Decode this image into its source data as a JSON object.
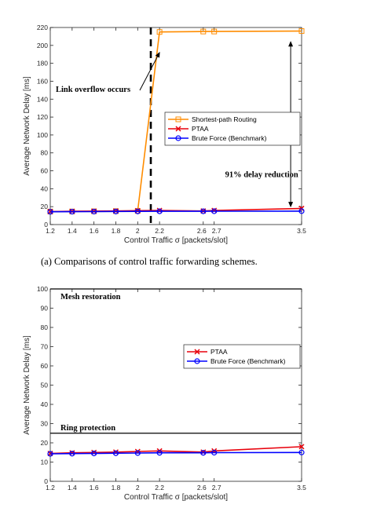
{
  "chart_data": [
    {
      "type": "line",
      "xlabel": "Control Traffic σ [packets/slot]",
      "ylabel": "Average Network Delay [ms]",
      "xlim": [
        1.2,
        3.5
      ],
      "ylim": [
        0,
        220
      ],
      "xticks": [
        1.2,
        1.4,
        1.6,
        1.8,
        2,
        2.2,
        2.6,
        2.7,
        3.5
      ],
      "xtick_labels": [
        "1.2",
        "1.4",
        "1.6",
        "1.8",
        "2",
        "2.2",
        "2.6",
        "2.7",
        "3.5"
      ],
      "yticks": [
        0,
        20,
        40,
        60,
        80,
        100,
        120,
        140,
        160,
        180,
        200,
        220
      ],
      "ytick_labels": [
        "0",
        "20",
        "40",
        "60",
        "80",
        "100",
        "120",
        "140",
        "160",
        "180",
        "200",
        "220"
      ],
      "grid": false,
      "legend_position": "middle-right",
      "series": [
        {
          "name": "Shortest-path Routing",
          "color": "#ff8c00",
          "marker": "square",
          "x": [
            1.2,
            1.4,
            1.6,
            1.8,
            2.0,
            2.2,
            2.6,
            2.7,
            3.5
          ],
          "values": [
            14.5,
            14.6,
            14.8,
            15.0,
            15.2,
            215,
            215.5,
            215.5,
            216
          ]
        },
        {
          "name": "PTAA",
          "color": "#e8000b",
          "marker": "x",
          "x": [
            1.2,
            1.4,
            1.6,
            1.8,
            2.0,
            2.2,
            2.6,
            2.7,
            3.5
          ],
          "values": [
            14.5,
            14.8,
            15.0,
            15.2,
            15.5,
            15.8,
            15.2,
            15.8,
            18.0
          ]
        },
        {
          "name": "Brute Force (Benchmark)",
          "color": "#0000ff",
          "marker": "circle",
          "x": [
            1.2,
            1.4,
            1.6,
            1.8,
            2.0,
            2.2,
            2.6,
            2.7,
            3.5
          ],
          "values": [
            14.3,
            14.4,
            14.5,
            14.6,
            14.7,
            14.8,
            14.8,
            14.9,
            15.0
          ]
        }
      ],
      "vline": {
        "x": 2.12,
        "style": "dashed"
      },
      "annotations": [
        {
          "text": "Link overflow occurs",
          "x": 1.25,
          "y": 148,
          "arrow_to": [
            2.2,
            192
          ]
        },
        {
          "text": "91% delay reduction",
          "x": 2.8,
          "y": 53,
          "arrow_from": [
            3.4,
            204
          ],
          "arrow_to": [
            3.4,
            20
          ]
        }
      ]
    },
    {
      "type": "line",
      "xlabel": "Control Traffic σ [packets/slot]",
      "ylabel": "Average Network Delay [ms]",
      "xlim": [
        1.2,
        3.5
      ],
      "ylim": [
        0,
        100
      ],
      "xticks": [
        1.2,
        1.4,
        1.6,
        1.8,
        2,
        2.2,
        2.6,
        2.7,
        3.5
      ],
      "xtick_labels": [
        "1.2",
        "1.4",
        "1.6",
        "1.8",
        "2",
        "2.2",
        "2.6",
        "2.7",
        "3.5"
      ],
      "yticks": [
        0,
        10,
        20,
        30,
        40,
        50,
        60,
        70,
        80,
        90,
        100
      ],
      "ytick_labels": [
        "0",
        "10",
        "20",
        "30",
        "40",
        "50",
        "60",
        "70",
        "80",
        "90",
        "100"
      ],
      "grid": false,
      "legend_position": "middle-right",
      "series": [
        {
          "name": "PTAA",
          "color": "#e8000b",
          "marker": "x",
          "x": [
            1.2,
            1.4,
            1.6,
            1.8,
            2.0,
            2.2,
            2.6,
            2.7,
            3.5
          ],
          "values": [
            14.5,
            14.8,
            15.0,
            15.2,
            15.5,
            15.8,
            15.2,
            15.8,
            18.0
          ]
        },
        {
          "name": "Brute Force (Benchmark)",
          "color": "#0000ff",
          "marker": "circle",
          "x": [
            1.2,
            1.4,
            1.6,
            1.8,
            2.0,
            2.2,
            2.6,
            2.7,
            3.5
          ],
          "values": [
            14.3,
            14.4,
            14.5,
            14.6,
            14.7,
            14.8,
            14.8,
            14.9,
            15.0
          ]
        }
      ],
      "hlines": [
        {
          "y": 100,
          "label": "Mesh restoration"
        },
        {
          "y": 25,
          "label": "Ring protection"
        }
      ]
    }
  ],
  "captions": {
    "top": "(a) Comparisons of control traffic forwarding schemes."
  }
}
